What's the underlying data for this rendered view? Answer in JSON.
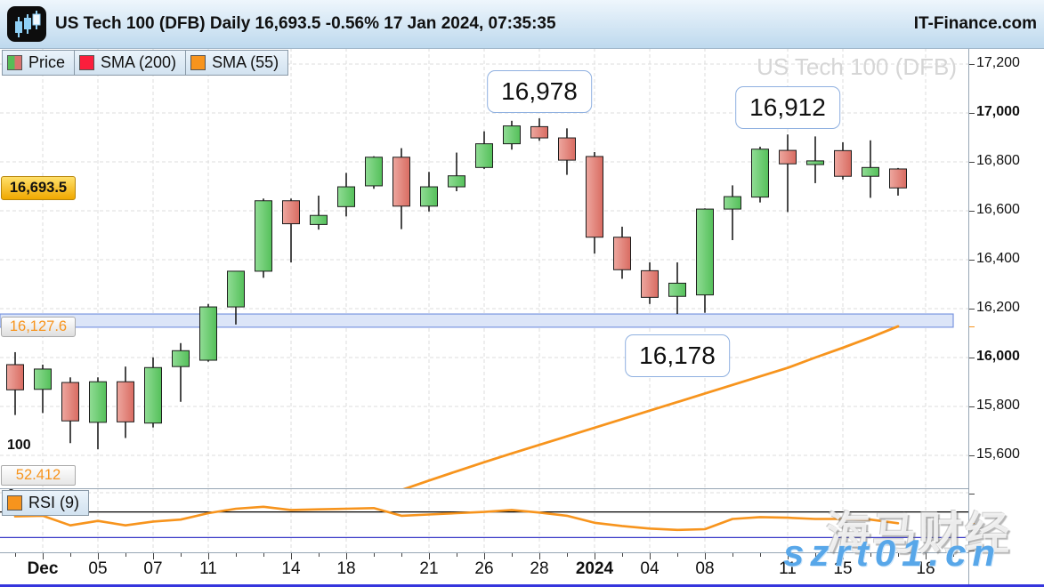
{
  "header": {
    "title": "US Tech 100 (DFB) Daily 16,693.5 -0.56% 17 Jan 2024, 07:35:35",
    "brand": "IT-Finance.com"
  },
  "legend": {
    "price_label": "Price",
    "sma200_label": "SMA (200)",
    "sma55_label": "SMA (55)",
    "rsi_label": "RSI (9)"
  },
  "watermarks": {
    "chart": "US Tech 100 (DFB)",
    "site_small": "IT-Finance.com",
    "cn_text": "海马财经",
    "domain_text": "szrt01.cn"
  },
  "special_labels": {
    "current_price": "16,693.5",
    "sma55": "16,127.6"
  },
  "rsi_axis": {
    "top": "100",
    "bottom": "0",
    "current": "52.412"
  },
  "colors": {
    "up": "#54c05a",
    "up_light": "#90dc94",
    "down": "#d96b61",
    "down_light": "#eda79f",
    "outline": "#1c1c1c",
    "sma55": "#f7941d",
    "sma200": "#fb1e3c",
    "zone_fill": "#dce5f8",
    "zone_border": "#7b96e0",
    "grid": "#dddddd",
    "annotation_border": "#8fb0e0",
    "current_label": "#f0a800",
    "rsi_upper_line": "#000000",
    "rsi_lower_line": "#3a3ac8",
    "watermark_gray": "#d6d6d6",
    "domain_watermark_blue": "#58a7e9"
  },
  "chart_data": {
    "type": "candlestick",
    "title": "US Tech 100 (DFB)",
    "timeframe": "Daily",
    "last_price": 16693.5,
    "change_pct": -0.56,
    "timestamp": "17 Jan 2024, 07:35:35",
    "categories": [
      "30 Nov",
      "1 Dec",
      "4 Dec",
      "5 Dec",
      "6 Dec",
      "7 Dec",
      "8 Dec",
      "11 Dec",
      "12 Dec",
      "13 Dec",
      "14 Dec",
      "15 Dec",
      "18 Dec",
      "19 Dec",
      "20 Dec",
      "21 Dec",
      "22 Dec",
      "26 Dec",
      "27 Dec",
      "28 Dec",
      "29 Dec",
      "2 Jan",
      "3 Jan",
      "4 Jan",
      "5 Jan",
      "8 Jan",
      "9 Jan",
      "10 Jan",
      "11 Jan",
      "12 Jan",
      "15 Jan",
      "16 Jan",
      "17 Jan"
    ],
    "candles_format": [
      "open",
      "high",
      "low",
      "close"
    ],
    "candles": [
      [
        15971,
        16022,
        15765,
        15868
      ],
      [
        15870,
        15971,
        15773,
        15953
      ],
      [
        15898,
        15919,
        15650,
        15741
      ],
      [
        15735,
        15919,
        15625,
        15901
      ],
      [
        15901,
        15963,
        15671,
        15737
      ],
      [
        15732,
        16001,
        15714,
        15959
      ],
      [
        15963,
        16059,
        15819,
        16028
      ],
      [
        15989,
        16219,
        15983,
        16207
      ],
      [
        16207,
        16353,
        16135,
        16353
      ],
      [
        16353,
        16650,
        16326,
        16641
      ],
      [
        16641,
        16650,
        16389,
        16547
      ],
      [
        16544,
        16662,
        16523,
        16581
      ],
      [
        16617,
        16755,
        16577,
        16698
      ],
      [
        16702,
        16823,
        16690,
        16819
      ],
      [
        16819,
        16856,
        16525,
        16619
      ],
      [
        16619,
        16759,
        16597,
        16698
      ],
      [
        16698,
        16838,
        16680,
        16743
      ],
      [
        16777,
        16925,
        16771,
        16874
      ],
      [
        16874,
        16968,
        16850,
        16947
      ],
      [
        16944,
        16978,
        16886,
        16898
      ],
      [
        16898,
        16937,
        16747,
        16807
      ],
      [
        16822,
        16840,
        16425,
        16492
      ],
      [
        16492,
        16535,
        16322,
        16359
      ],
      [
        16355,
        16389,
        16219,
        16246
      ],
      [
        16250,
        16389,
        16178,
        16304
      ],
      [
        16256,
        16610,
        16183,
        16607
      ],
      [
        16607,
        16704,
        16480,
        16658
      ],
      [
        16656,
        16862,
        16634,
        16852
      ],
      [
        16847,
        16912,
        16595,
        16792
      ],
      [
        16789,
        16904,
        16713,
        16804
      ],
      [
        16846,
        16880,
        16728,
        16741
      ],
      [
        16741,
        16888,
        16653,
        16777
      ],
      [
        16771,
        16775,
        16662,
        16693.5
      ]
    ],
    "overlays": [
      {
        "name": "SMA (55)",
        "color": "#f7941d",
        "start_index": 14,
        "values": [
          15458,
          15497,
          15535,
          15572,
          15608,
          15643,
          15678,
          15713,
          15748,
          15783,
          15818,
          15853,
          15888,
          15923,
          15958,
          16000,
          16040,
          16082,
          16127.6
        ]
      },
      {
        "name": "SMA (200)",
        "color": "#fb1e3c",
        "start_index": 0,
        "values": []
      }
    ],
    "indicator": {
      "name": "RSI (9)",
      "range": [
        0,
        100
      ],
      "levels": {
        "upper": 70,
        "lower": 30
      },
      "current": 52.412,
      "values": [
        63,
        64,
        49,
        56,
        49,
        55,
        58,
        68,
        75,
        78,
        73,
        74,
        75,
        76,
        64,
        66,
        68,
        70,
        73,
        69,
        64,
        53,
        48,
        44,
        42,
        43,
        59,
        62,
        61,
        59,
        59,
        58,
        52.412
      ]
    },
    "y_axis": {
      "labels": [
        {
          "text": "17,200",
          "price": 17200,
          "bold": false
        },
        {
          "text": "17,000",
          "price": 17000,
          "bold": true
        },
        {
          "text": "16,800",
          "price": 16800,
          "bold": false
        },
        {
          "text": "16,600",
          "price": 16600,
          "bold": false
        },
        {
          "text": "16,400",
          "price": 16400,
          "bold": false
        },
        {
          "text": "16,200",
          "price": 16200,
          "bold": false
        },
        {
          "text": "16,000",
          "price": 16000,
          "bold": true
        },
        {
          "text": "15,800",
          "price": 15800,
          "bold": false
        },
        {
          "text": "15,600",
          "price": 15600,
          "bold": false
        }
      ],
      "current_price": 16693.5,
      "sma55_price": 16127.6
    },
    "x_axis": {
      "labels": [
        {
          "text": "Dec",
          "index": 1,
          "bold": true
        },
        {
          "text": "05",
          "index": 3,
          "bold": false
        },
        {
          "text": "07",
          "index": 5,
          "bold": false
        },
        {
          "text": "11",
          "index": 7,
          "bold": false
        },
        {
          "text": "14",
          "index": 10,
          "bold": false
        },
        {
          "text": "18",
          "index": 12,
          "bold": false
        },
        {
          "text": "21",
          "index": 15,
          "bold": false
        },
        {
          "text": "26",
          "index": 17,
          "bold": false
        },
        {
          "text": "28",
          "index": 19,
          "bold": false
        },
        {
          "text": "2024",
          "index": 21,
          "bold": true
        },
        {
          "text": "04",
          "index": 23,
          "bold": false
        },
        {
          "text": "08",
          "index": 25,
          "bold": false
        },
        {
          "text": "11",
          "index": 28,
          "bold": false
        },
        {
          "text": "15",
          "index": 30,
          "bold": false
        },
        {
          "text": "18",
          "index": 33,
          "bold": false
        }
      ]
    },
    "zone": {
      "price_top": 16178,
      "price_bottom": 16124,
      "start_index": -0.6,
      "end_index": 34
    },
    "annotations": [
      {
        "text": "16,978",
        "value": 16978,
        "index": 19,
        "anchor_price": 16978,
        "position": "above"
      },
      {
        "text": "16,912",
        "value": 16912,
        "index": 28,
        "anchor_price": 16912,
        "position": "above"
      },
      {
        "text": "16,178",
        "value": 16178,
        "index": 24,
        "anchor_price": 16124,
        "position": "below"
      }
    ]
  }
}
